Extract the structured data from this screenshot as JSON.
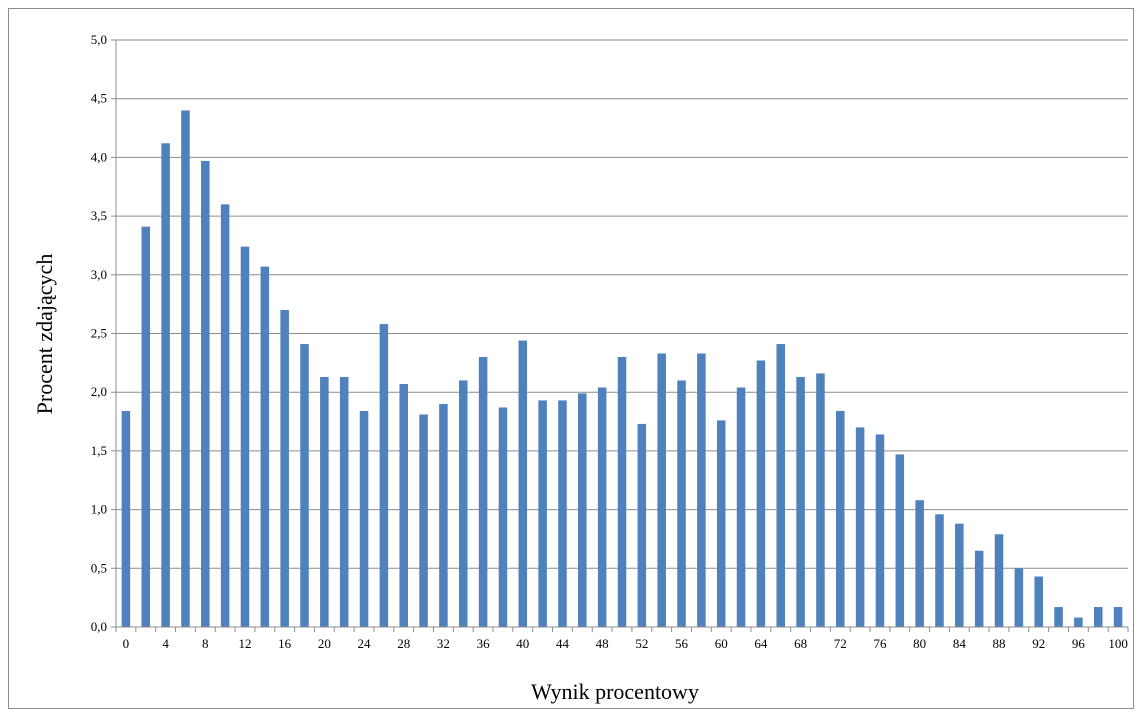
{
  "chart_data": {
    "type": "bar",
    "title": "",
    "xlabel": "Wynik procentowy",
    "ylabel": "Procent zdających",
    "ylim": [
      0,
      5.0
    ],
    "ytick_step": 0.5,
    "y_tick_labels": [
      "0,0",
      "0,5",
      "1,0",
      "1,5",
      "2,0",
      "2,5",
      "3,0",
      "3,5",
      "4,0",
      "4,5",
      "5,0"
    ],
    "categories": [
      0,
      2,
      4,
      6,
      8,
      10,
      12,
      14,
      16,
      18,
      20,
      22,
      24,
      26,
      28,
      30,
      32,
      34,
      36,
      38,
      40,
      42,
      44,
      46,
      48,
      50,
      52,
      54,
      56,
      58,
      60,
      62,
      64,
      66,
      68,
      70,
      72,
      74,
      76,
      78,
      80,
      82,
      84,
      86,
      88,
      90,
      92,
      94,
      96,
      98,
      100
    ],
    "x_tick_labels": [
      "0",
      "4",
      "8",
      "12",
      "16",
      "20",
      "24",
      "28",
      "32",
      "36",
      "40",
      "44",
      "48",
      "52",
      "56",
      "60",
      "64",
      "68",
      "72",
      "76",
      "80",
      "84",
      "88",
      "92",
      "96",
      "100"
    ],
    "values": [
      1.84,
      3.41,
      4.12,
      4.4,
      3.97,
      3.6,
      3.24,
      3.07,
      2.7,
      2.41,
      2.13,
      2.13,
      1.84,
      2.58,
      2.07,
      1.81,
      1.9,
      2.1,
      2.3,
      1.87,
      2.44,
      1.93,
      1.93,
      1.99,
      2.04,
      2.3,
      1.73,
      2.33,
      2.1,
      2.33,
      1.76,
      2.04,
      2.27,
      2.41,
      2.13,
      2.16,
      1.84,
      1.7,
      1.64,
      1.47,
      1.08,
      0.96,
      0.88,
      0.65,
      0.79,
      0.5,
      0.43,
      0.17,
      0.08,
      0.17,
      0.17
    ],
    "bar_color": "#4f81bd",
    "grid_color": "#8c8c8c",
    "grid": true,
    "legend": "none"
  }
}
